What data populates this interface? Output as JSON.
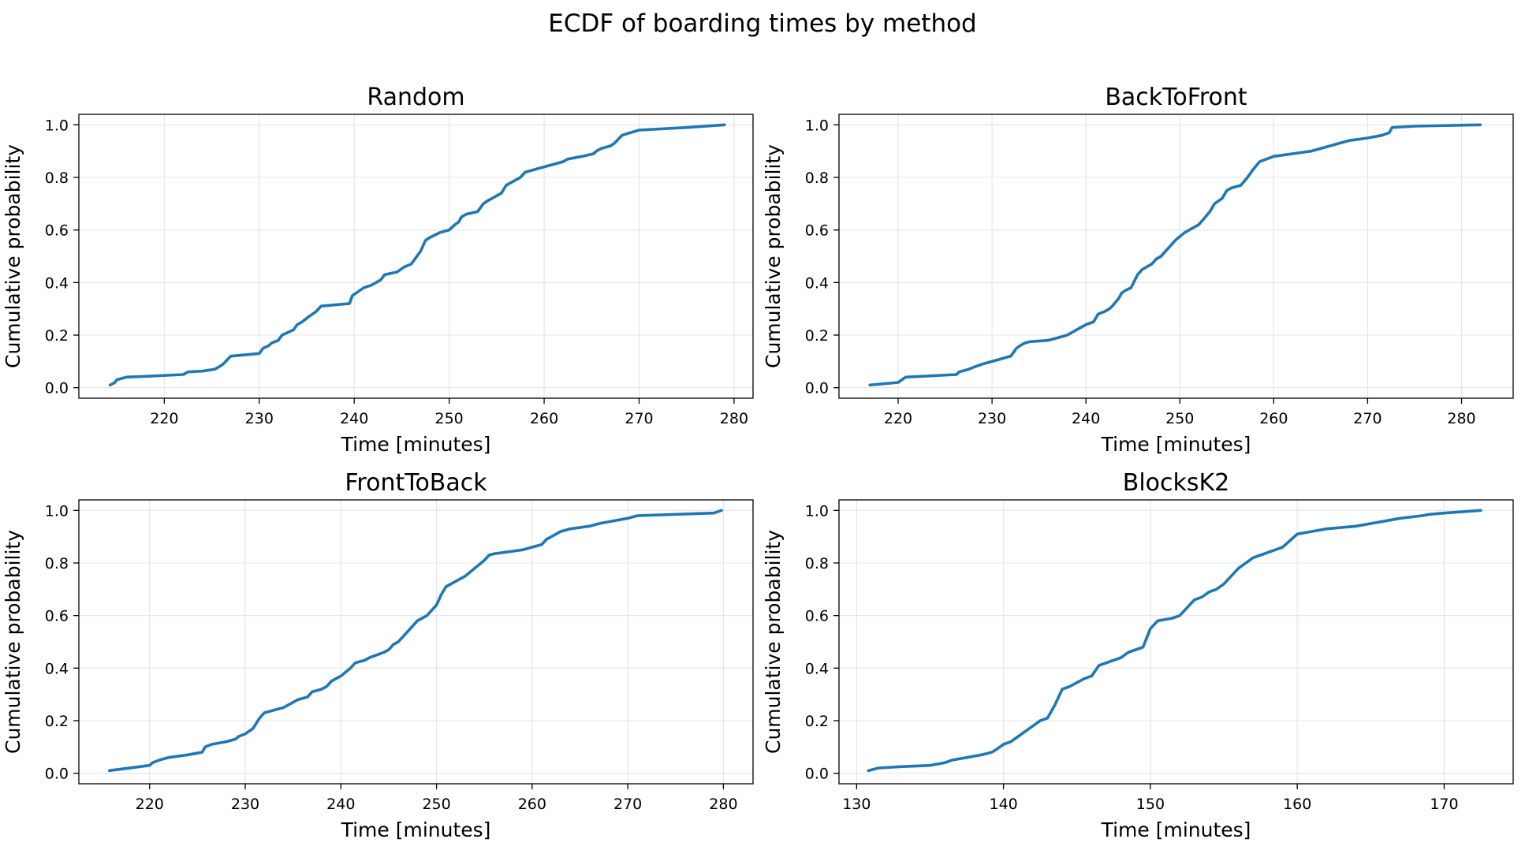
{
  "figure": {
    "suptitle": "ECDF of boarding times by method"
  },
  "colors": {
    "series": "#1f77b4",
    "grid": "#e4e4e4",
    "axes": "#000000",
    "background": "#ffffff"
  },
  "chart_data": [
    {
      "type": "line",
      "title": "Random",
      "xlabel": "Time [minutes]",
      "ylabel": "Cumulative probability",
      "xlim": [
        211,
        282
      ],
      "ylim": [
        -0.04,
        1.04
      ],
      "xticks": [
        220,
        230,
        240,
        250,
        260,
        270,
        280
      ],
      "yticks": [
        0.0,
        0.2,
        0.4,
        0.6,
        0.8,
        1.0
      ],
      "ytick_labels": [
        "0.0",
        "0.2",
        "0.4",
        "0.6",
        "0.8",
        "1.0"
      ],
      "grid": true,
      "legend": "none",
      "series": [
        {
          "x": [
            214.3,
            214.8,
            215.0,
            216.0,
            218.0,
            222.0,
            222.5,
            224.0,
            225.3,
            225.8,
            226.2,
            227.0,
            230.0,
            230.4,
            231.0,
            231.3,
            232.0,
            232.4,
            233.0,
            233.6,
            234.0,
            234.5,
            235.2,
            236.0,
            236.5,
            237.0,
            239.5,
            239.8,
            240.2,
            240.6,
            241.0,
            241.8,
            242.8,
            243.2,
            244.5,
            244.9,
            245.3,
            246.0,
            246.6,
            247.0,
            247.5,
            247.9,
            249.0,
            250.0,
            250.6,
            251.0,
            251.3,
            251.8,
            253.0,
            253.6,
            254.0,
            254.5,
            255.0,
            255.5,
            256.0,
            256.5,
            257.0,
            257.5,
            258.0,
            258.5,
            259.0,
            260.0,
            261.0,
            262.0,
            262.5,
            264.0,
            265.2,
            265.5,
            266.0,
            267.0,
            267.4,
            268.2,
            268.6,
            270.0,
            275.0,
            279.0
          ],
          "y": [
            0.01,
            0.02,
            0.03,
            0.04,
            0.043,
            0.05,
            0.06,
            0.063,
            0.07,
            0.08,
            0.09,
            0.12,
            0.13,
            0.15,
            0.16,
            0.17,
            0.18,
            0.2,
            0.21,
            0.22,
            0.24,
            0.25,
            0.27,
            0.29,
            0.31,
            0.312,
            0.32,
            0.35,
            0.36,
            0.37,
            0.38,
            0.39,
            0.41,
            0.43,
            0.44,
            0.45,
            0.46,
            0.47,
            0.5,
            0.52,
            0.56,
            0.57,
            0.59,
            0.6,
            0.62,
            0.63,
            0.65,
            0.66,
            0.67,
            0.7,
            0.71,
            0.72,
            0.73,
            0.74,
            0.77,
            0.78,
            0.79,
            0.8,
            0.82,
            0.825,
            0.83,
            0.84,
            0.85,
            0.86,
            0.87,
            0.88,
            0.89,
            0.9,
            0.91,
            0.92,
            0.93,
            0.96,
            0.965,
            0.98,
            0.99,
            1.0
          ]
        }
      ]
    },
    {
      "type": "line",
      "title": "BackToFront",
      "xlabel": "Time [minutes]",
      "ylabel": "Cumulative probability",
      "xlim": [
        213.7,
        285.5
      ],
      "ylim": [
        -0.04,
        1.04
      ],
      "xticks": [
        220,
        230,
        240,
        250,
        260,
        270,
        280
      ],
      "yticks": [
        0.0,
        0.2,
        0.4,
        0.6,
        0.8,
        1.0
      ],
      "ytick_labels": [
        "0.0",
        "0.2",
        "0.4",
        "0.6",
        "0.8",
        "1.0"
      ],
      "grid": true,
      "legend": "none",
      "series": [
        {
          "x": [
            217.0,
            220.0,
            220.8,
            226.2,
            226.5,
            227.5,
            228.2,
            229.0,
            230.0,
            232.0,
            232.6,
            233.0,
            233.5,
            234.0,
            236.0,
            237.0,
            238.0,
            238.5,
            239.5,
            240.0,
            240.8,
            241.3,
            242.0,
            242.5,
            242.8,
            243.5,
            243.8,
            244.2,
            244.8,
            245.5,
            246.0,
            246.5,
            247.0,
            247.5,
            248.0,
            248.5,
            249.0,
            249.5,
            250.5,
            251.0,
            252.0,
            252.5,
            253.2,
            253.7,
            254.5,
            255.0,
            255.5,
            256.5,
            257.2,
            257.8,
            258.5,
            260.0,
            262.0,
            264.0,
            266.0,
            267.0,
            268.0,
            270.0,
            271.5,
            272.3,
            272.6,
            275.0,
            282.0
          ],
          "y": [
            0.01,
            0.02,
            0.04,
            0.05,
            0.06,
            0.07,
            0.08,
            0.09,
            0.1,
            0.12,
            0.15,
            0.16,
            0.17,
            0.175,
            0.18,
            0.19,
            0.2,
            0.21,
            0.23,
            0.24,
            0.25,
            0.28,
            0.29,
            0.3,
            0.31,
            0.34,
            0.36,
            0.37,
            0.38,
            0.43,
            0.45,
            0.46,
            0.47,
            0.49,
            0.5,
            0.52,
            0.54,
            0.56,
            0.59,
            0.6,
            0.62,
            0.64,
            0.67,
            0.7,
            0.72,
            0.75,
            0.76,
            0.77,
            0.8,
            0.83,
            0.86,
            0.88,
            0.89,
            0.9,
            0.92,
            0.93,
            0.94,
            0.95,
            0.96,
            0.97,
            0.99,
            0.995,
            1.0
          ]
        }
      ]
    },
    {
      "type": "line",
      "title": "FrontToBack",
      "xlabel": "Time [minutes]",
      "ylabel": "Cumulative probability",
      "xlim": [
        212.6,
        283.1
      ],
      "ylim": [
        -0.04,
        1.04
      ],
      "xticks": [
        220,
        230,
        240,
        250,
        260,
        270,
        280
      ],
      "yticks": [
        0.0,
        0.2,
        0.4,
        0.6,
        0.8,
        1.0
      ],
      "ytick_labels": [
        "0.0",
        "0.2",
        "0.4",
        "0.6",
        "0.8",
        "1.0"
      ],
      "grid": true,
      "legend": "none",
      "series": [
        {
          "x": [
            215.8,
            220.0,
            220.3,
            221.0,
            222.0,
            224.0,
            225.5,
            225.8,
            226.5,
            228.0,
            229.0,
            229.3,
            230.0,
            230.8,
            231.5,
            232.0,
            233.0,
            234.0,
            235.0,
            235.5,
            236.5,
            237.0,
            238.0,
            238.5,
            239.0,
            240.0,
            241.0,
            241.5,
            242.5,
            243.0,
            244.5,
            245.0,
            245.5,
            246.0,
            247.0,
            247.5,
            248.0,
            248.5,
            249.0,
            249.5,
            250.0,
            250.5,
            251.0,
            252.0,
            253.0,
            254.0,
            255.0,
            255.5,
            256.0,
            257.0,
            258.0,
            259.0,
            259.5,
            260.0,
            261.0,
            261.5,
            262.0,
            263.0,
            264.0,
            266.0,
            267.0,
            270.0,
            271.0,
            279.0,
            279.8
          ],
          "y": [
            0.01,
            0.03,
            0.04,
            0.05,
            0.06,
            0.07,
            0.08,
            0.1,
            0.11,
            0.12,
            0.13,
            0.14,
            0.15,
            0.17,
            0.21,
            0.23,
            0.24,
            0.25,
            0.27,
            0.28,
            0.29,
            0.31,
            0.32,
            0.33,
            0.35,
            0.37,
            0.4,
            0.42,
            0.43,
            0.44,
            0.46,
            0.47,
            0.49,
            0.5,
            0.54,
            0.56,
            0.58,
            0.59,
            0.6,
            0.62,
            0.64,
            0.68,
            0.71,
            0.73,
            0.75,
            0.78,
            0.81,
            0.83,
            0.835,
            0.84,
            0.845,
            0.85,
            0.855,
            0.86,
            0.87,
            0.89,
            0.9,
            0.92,
            0.93,
            0.94,
            0.95,
            0.97,
            0.98,
            0.99,
            1.0
          ]
        }
      ]
    },
    {
      "type": "line",
      "title": "BlocksK2",
      "xlabel": "Time [minutes]",
      "ylabel": "Cumulative probability",
      "xlim": [
        128.8,
        174.7
      ],
      "ylim": [
        -0.04,
        1.04
      ],
      "xticks": [
        130,
        140,
        150,
        160,
        170
      ],
      "yticks": [
        0.0,
        0.2,
        0.4,
        0.6,
        0.8,
        1.0
      ],
      "ytick_labels": [
        "0.0",
        "0.2",
        "0.4",
        "0.6",
        "0.8",
        "1.0"
      ],
      "grid": true,
      "legend": "none",
      "series": [
        {
          "x": [
            130.8,
            131.5,
            133.0,
            135.0,
            135.5,
            136.0,
            136.5,
            137.5,
            138.5,
            139.2,
            139.5,
            140.0,
            140.5,
            141.0,
            141.5,
            142.0,
            142.5,
            143.0,
            143.5,
            144.0,
            144.5,
            145.5,
            146.0,
            146.5,
            147.0,
            148.0,
            148.5,
            149.0,
            149.5,
            150.0,
            150.5,
            151.5,
            152.0,
            152.5,
            153.0,
            153.5,
            154.0,
            154.5,
            155.0,
            155.5,
            156.0,
            157.0,
            157.5,
            158.0,
            158.5,
            159.0,
            160.0,
            161.0,
            162.0,
            164.0,
            165.0,
            166.0,
            167.0,
            168.5,
            169.0,
            170.0,
            172.5
          ],
          "y": [
            0.01,
            0.02,
            0.025,
            0.03,
            0.035,
            0.04,
            0.05,
            0.06,
            0.07,
            0.08,
            0.09,
            0.11,
            0.12,
            0.14,
            0.16,
            0.18,
            0.2,
            0.21,
            0.26,
            0.32,
            0.33,
            0.36,
            0.37,
            0.41,
            0.42,
            0.44,
            0.46,
            0.47,
            0.48,
            0.55,
            0.58,
            0.59,
            0.6,
            0.63,
            0.66,
            0.67,
            0.69,
            0.7,
            0.72,
            0.75,
            0.78,
            0.82,
            0.83,
            0.84,
            0.85,
            0.86,
            0.91,
            0.92,
            0.93,
            0.94,
            0.95,
            0.96,
            0.97,
            0.98,
            0.985,
            0.99,
            1.0
          ]
        }
      ]
    }
  ]
}
